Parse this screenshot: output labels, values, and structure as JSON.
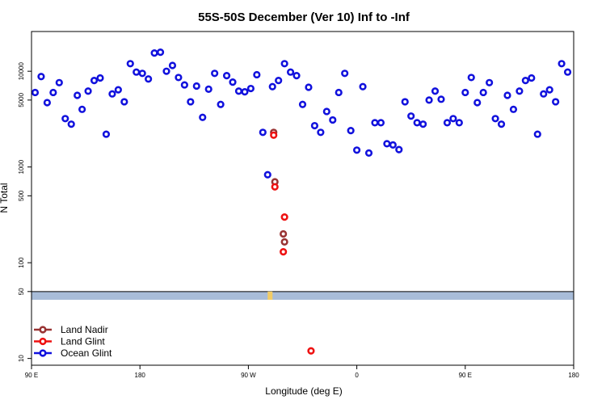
{
  "chart_data": {
    "type": "scatter",
    "title": "55S-50S December (Ver 10)   Inf to -Inf",
    "xlabel": "Longitude (deg E)",
    "ylabel": "N Total",
    "yscale": "log",
    "xlim": [
      90,
      540
    ],
    "ylim": [
      8.5,
      26000
    ],
    "x_ticks": [
      {
        "value": 90,
        "label": "90 E"
      },
      {
        "value": 180,
        "label": "180"
      },
      {
        "value": 270,
        "label": "90 W"
      },
      {
        "value": 360,
        "label": "0"
      },
      {
        "value": 450,
        "label": "90 E"
      },
      {
        "value": 540,
        "label": "180"
      }
    ],
    "y_ticks": [
      {
        "value": 10,
        "label": "10"
      },
      {
        "value": 50,
        "label": "50"
      },
      {
        "value": 100,
        "label": "100"
      },
      {
        "value": 500,
        "label": "500"
      },
      {
        "value": 1000,
        "label": "1000"
      },
      {
        "value": 5000,
        "label": "5000"
      },
      {
        "value": 10000,
        "label": "10000"
      }
    ],
    "land_band": {
      "ymin": 41,
      "ymax": 50,
      "color": "#a8bcd8"
    },
    "legend": {
      "position": "bottom-left"
    },
    "series": [
      {
        "name": "Land Nadir",
        "color": "#993333",
        "points": [
          [
            291,
            2300
          ],
          [
            292,
            700
          ],
          [
            299,
            200
          ],
          [
            300,
            165
          ]
        ]
      },
      {
        "name": "Land Glint",
        "color": "#ee1111",
        "points": [
          [
            291,
            2150
          ],
          [
            292,
            620
          ],
          [
            300,
            300
          ],
          [
            299,
            130
          ],
          [
            322,
            12
          ]
        ]
      },
      {
        "name": "Ocean Glint",
        "color": "#1111dd",
        "points": [
          [
            93,
            6000
          ],
          [
            98,
            8800
          ],
          [
            103,
            4700
          ],
          [
            108,
            6000
          ],
          [
            113,
            7600
          ],
          [
            118,
            3200
          ],
          [
            123,
            2800
          ],
          [
            128,
            5600
          ],
          [
            132,
            4000
          ],
          [
            137,
            6200
          ],
          [
            142,
            8000
          ],
          [
            147,
            8500
          ],
          [
            152,
            2200
          ],
          [
            157,
            5800
          ],
          [
            162,
            6400
          ],
          [
            167,
            4800
          ],
          [
            172,
            12000
          ],
          [
            177,
            9800
          ],
          [
            182,
            9500
          ],
          [
            187,
            8300
          ],
          [
            192,
            15500
          ],
          [
            197,
            15800
          ],
          [
            202,
            10000
          ],
          [
            207,
            11500
          ],
          [
            212,
            8600
          ],
          [
            217,
            7200
          ],
          [
            222,
            4800
          ],
          [
            227,
            7000
          ],
          [
            232,
            3300
          ],
          [
            237,
            6500
          ],
          [
            242,
            9500
          ],
          [
            247,
            4500
          ],
          [
            252,
            9000
          ],
          [
            257,
            7700
          ],
          [
            262,
            6200
          ],
          [
            267,
            6100
          ],
          [
            272,
            6600
          ],
          [
            277,
            9200
          ],
          [
            282,
            2300
          ],
          [
            286,
            830
          ],
          [
            290,
            6900
          ],
          [
            295,
            8000
          ],
          [
            300,
            12000
          ],
          [
            305,
            9800
          ],
          [
            310,
            9000
          ],
          [
            315,
            4500
          ],
          [
            320,
            6800
          ],
          [
            325,
            2700
          ],
          [
            330,
            2300
          ],
          [
            335,
            3800
          ],
          [
            340,
            3100
          ],
          [
            345,
            6000
          ],
          [
            350,
            9500
          ],
          [
            355,
            2400
          ],
          [
            360,
            1500
          ],
          [
            365,
            6900
          ],
          [
            370,
            1400
          ],
          [
            375,
            2900
          ],
          [
            380,
            2900
          ],
          [
            385,
            1750
          ],
          [
            390,
            1700
          ],
          [
            395,
            1520
          ],
          [
            400,
            4800
          ],
          [
            405,
            3400
          ],
          [
            410,
            2900
          ],
          [
            415,
            2800
          ],
          [
            420,
            5000
          ],
          [
            425,
            6200
          ],
          [
            430,
            5100
          ],
          [
            435,
            2900
          ],
          [
            440,
            3200
          ],
          [
            445,
            2900
          ],
          [
            450,
            6000
          ],
          [
            455,
            8600
          ],
          [
            460,
            4700
          ],
          [
            465,
            6000
          ],
          [
            470,
            7600
          ],
          [
            475,
            3200
          ],
          [
            480,
            2800
          ],
          [
            485,
            5600
          ],
          [
            490,
            4000
          ],
          [
            495,
            6200
          ],
          [
            500,
            8000
          ],
          [
            505,
            8500
          ],
          [
            510,
            2200
          ],
          [
            515,
            5800
          ],
          [
            520,
            6400
          ],
          [
            525,
            4800
          ],
          [
            530,
            12000
          ],
          [
            535,
            9800
          ]
        ]
      }
    ]
  }
}
